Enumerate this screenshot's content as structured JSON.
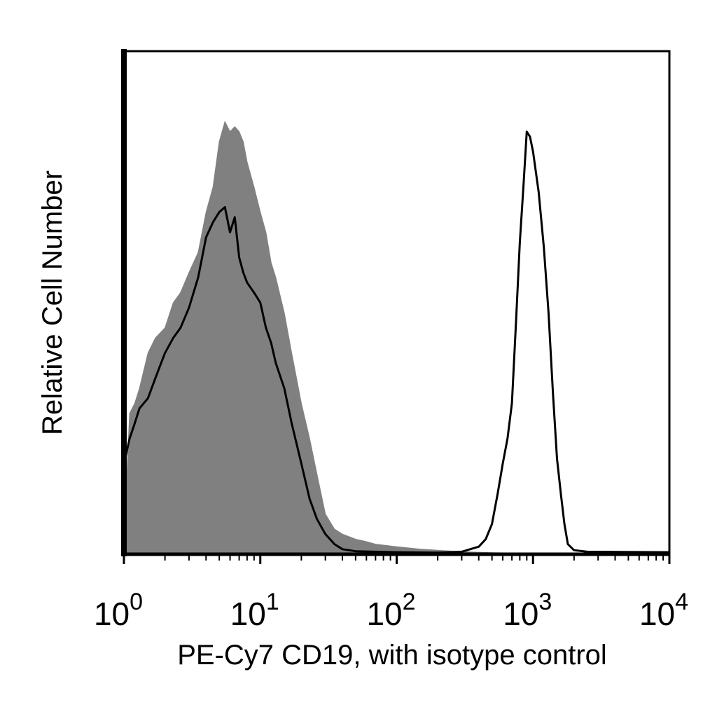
{
  "chart_data": {
    "type": "area",
    "xlabel": "PE-Cy7 CD19, with isotype control",
    "ylabel": "Relative Cell Number",
    "xscale": "log",
    "xlim": [
      1,
      10000
    ],
    "ylim": [
      0,
      100
    ],
    "grid": false,
    "x_tick_labels": [
      {
        "base": "10",
        "exp": "0",
        "value": 1
      },
      {
        "base": "10",
        "exp": "1",
        "value": 10
      },
      {
        "base": "10",
        "exp": "2",
        "value": 100
      },
      {
        "base": "10",
        "exp": "3",
        "value": 1000
      },
      {
        "base": "10",
        "exp": "4",
        "value": 10000
      }
    ],
    "series": [
      {
        "style": "filled-gray",
        "fill": "#808080",
        "x": [
          1.0,
          1.1,
          1.2,
          1.3,
          1.5,
          1.7,
          2.0,
          2.3,
          2.6,
          3.0,
          3.5,
          4.0,
          4.5,
          5.0,
          5.5,
          6.0,
          6.5,
          7.0,
          7.5,
          8.0,
          9.0,
          10.0,
          11.0,
          12.0,
          13.0,
          15.0,
          17.0,
          20.0,
          23.0,
          26.0,
          30.0,
          35.0,
          40.0,
          50.0,
          60.0,
          70.0,
          100.0,
          150.0,
          200.0,
          300.0,
          500.0,
          1000.0,
          10000.0
        ],
        "y": [
          3,
          28,
          30,
          33,
          40,
          43,
          45,
          50,
          52,
          56,
          60,
          68,
          73,
          82,
          86,
          84,
          85,
          84,
          82,
          78,
          73,
          68,
          64,
          58,
          55,
          48,
          40,
          30,
          23,
          16,
          8,
          5,
          4,
          3,
          2.5,
          2,
          1.5,
          1,
          0.8,
          0.5,
          0.3,
          0.2,
          0.2
        ]
      },
      {
        "style": "black-outline",
        "stroke": "#000000",
        "x": [
          1.0,
          1.1,
          1.2,
          1.3,
          1.5,
          1.7,
          2.0,
          2.3,
          2.6,
          3.0,
          3.5,
          4.0,
          4.5,
          5.0,
          5.5,
          6.0,
          6.5,
          7.0,
          7.5,
          8.0,
          9.0,
          10.0,
          11.0,
          12.0,
          13.0,
          15.0,
          17.0,
          20.0,
          23.0,
          26.0,
          30.0,
          35.0,
          40.0,
          50.0,
          100.0,
          200.0,
          300.0,
          400.0,
          450.0,
          500.0,
          550.0,
          600.0,
          650.0,
          700.0,
          750.0,
          800.0,
          850.0,
          900.0,
          950.0,
          1000.0,
          1100.0,
          1200.0,
          1300.0,
          1400.0,
          1500.0,
          1600.0,
          1700.0,
          1800.0,
          2000.0,
          2500.0,
          10000.0
        ],
        "y": [
          18,
          23,
          26,
          29,
          31,
          35,
          40,
          43,
          45,
          49,
          55,
          63,
          66,
          68,
          69,
          64,
          67,
          59,
          56,
          54,
          52,
          50,
          45,
          42,
          38,
          33,
          26,
          18,
          11,
          7,
          4,
          2,
          1,
          0.6,
          0.4,
          0.3,
          0.5,
          1.5,
          3,
          6,
          12,
          18,
          23,
          30,
          46,
          62,
          73,
          84,
          83,
          80,
          72,
          61,
          48,
          32,
          19,
          12,
          6,
          2,
          0.8,
          0.5,
          0.4
        ]
      }
    ]
  }
}
